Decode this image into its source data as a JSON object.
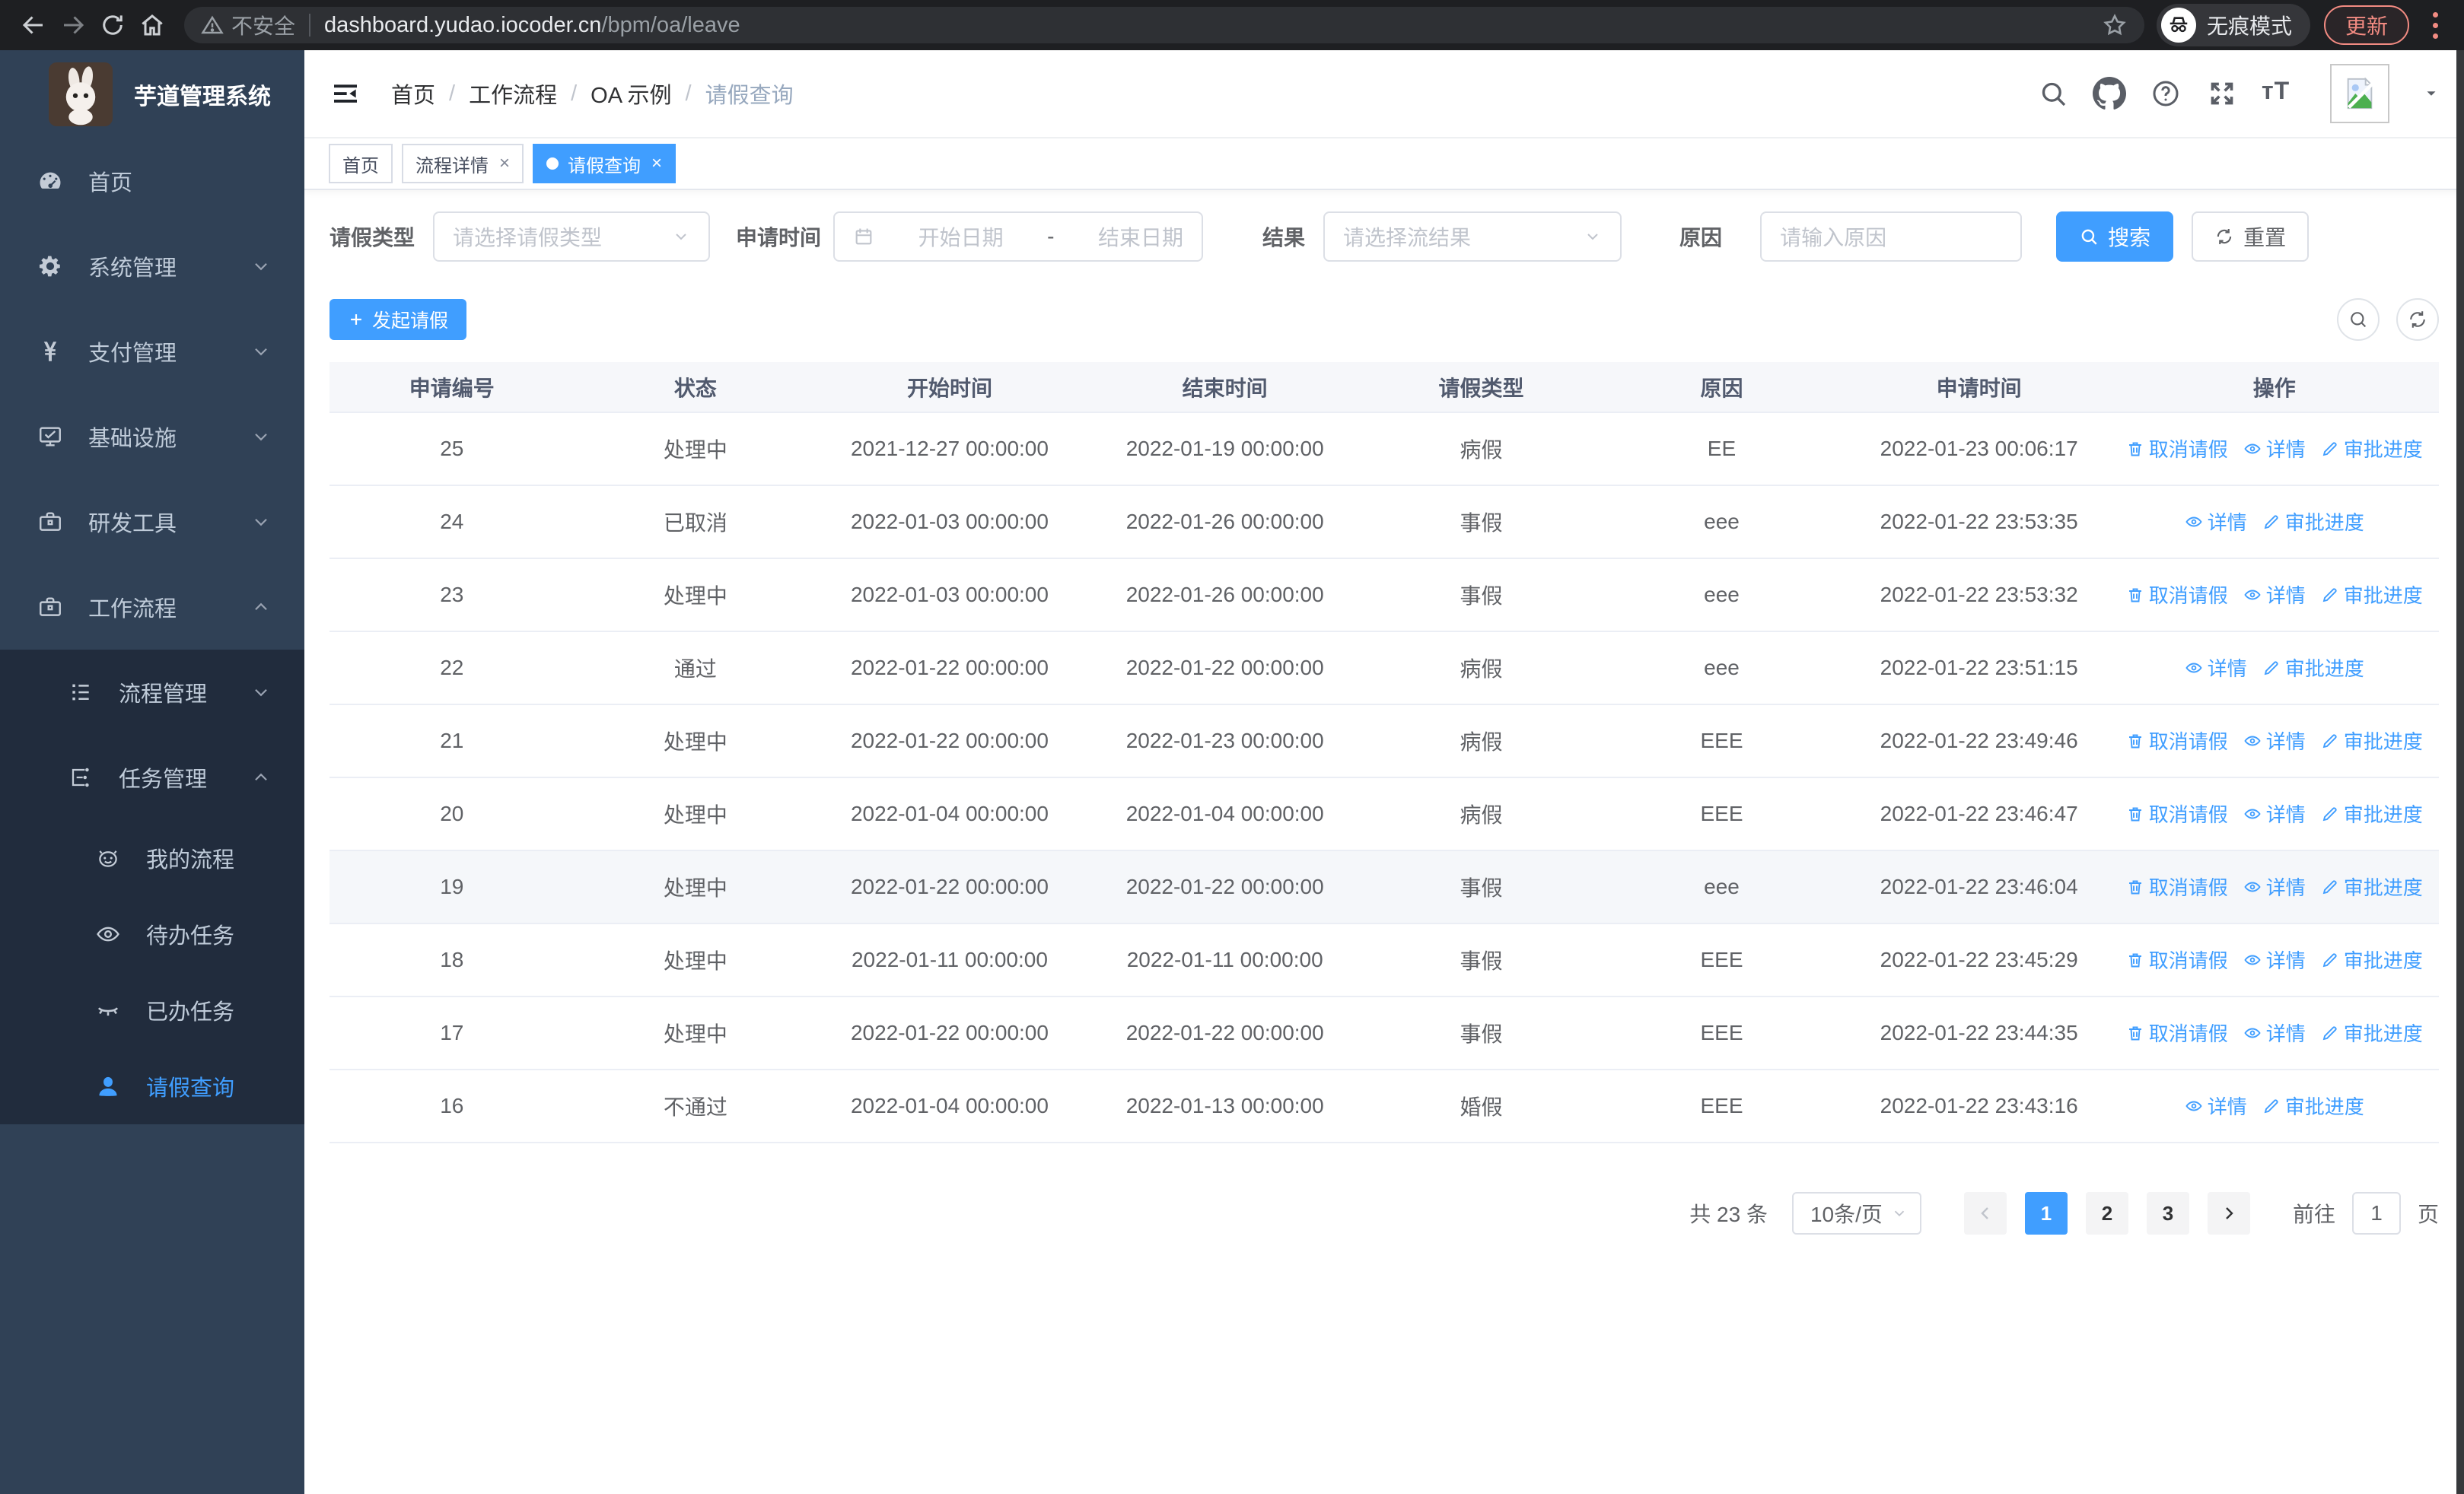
{
  "colors": {
    "accent": "#409eff",
    "sidebar_bg": "#304156",
    "sidebar_submenu_bg": "#212c3d",
    "browser_bar_bg": "#1e1f22",
    "update_accent": "#f28b82",
    "table_border": "#ebeef5"
  },
  "browser": {
    "security_label": "不安全",
    "url_host": "dashboard.yudao.iocoder.cn",
    "url_path": "/bpm/oa/leave",
    "incognito_label": "无痕模式",
    "update_label": "更新"
  },
  "sidebar": {
    "title": "芋道管理系统",
    "items": [
      {
        "label": "首页",
        "icon": "dashboard-icon",
        "level": 1,
        "chevron": null,
        "submenu": false,
        "active": false
      },
      {
        "label": "系统管理",
        "icon": "gear-icon",
        "level": 1,
        "chevron": "down",
        "submenu": false,
        "active": false
      },
      {
        "label": "支付管理",
        "icon": "yen-icon",
        "level": 1,
        "chevron": "down",
        "submenu": false,
        "active": false
      },
      {
        "label": "基础设施",
        "icon": "monitor-icon",
        "level": 1,
        "chevron": "down",
        "submenu": false,
        "active": false
      },
      {
        "label": "研发工具",
        "icon": "toolbox-icon",
        "level": 1,
        "chevron": "down",
        "submenu": false,
        "active": false
      },
      {
        "label": "工作流程",
        "icon": "briefcase-icon",
        "level": 1,
        "chevron": "up",
        "submenu": false,
        "active": false
      },
      {
        "label": "流程管理",
        "icon": "tree-list-icon",
        "level": 2,
        "chevron": "down",
        "submenu": true,
        "active": false
      },
      {
        "label": "任务管理",
        "icon": "flow-icon",
        "level": 2,
        "chevron": "up",
        "submenu": true,
        "active": false
      },
      {
        "label": "我的流程",
        "icon": "robot-face-icon",
        "level": 3,
        "chevron": null,
        "submenu": true,
        "active": false
      },
      {
        "label": "待办任务",
        "icon": "eye-open-icon",
        "level": 3,
        "chevron": null,
        "submenu": true,
        "active": false
      },
      {
        "label": "已办任务",
        "icon": "eye-closed-icon",
        "level": 3,
        "chevron": null,
        "submenu": true,
        "active": false
      },
      {
        "label": "请假查询",
        "icon": "user-icon",
        "level": 3,
        "chevron": null,
        "submenu": true,
        "active": true
      }
    ]
  },
  "breadcrumb": [
    "首页",
    "工作流程",
    "OA 示例",
    "请假查询"
  ],
  "tabs": [
    {
      "label": "首页",
      "closable": false,
      "active": false
    },
    {
      "label": "流程详情",
      "closable": true,
      "active": false
    },
    {
      "label": "请假查询",
      "closable": true,
      "active": true
    }
  ],
  "filters": {
    "leave_type": {
      "label": "请假类型",
      "placeholder": "请选择请假类型"
    },
    "apply_time": {
      "label": "申请时间",
      "start_placeholder": "开始日期",
      "separator": "-",
      "end_placeholder": "结束日期"
    },
    "result": {
      "label": "结果",
      "placeholder": "请选择流结果"
    },
    "reason": {
      "label": "原因",
      "placeholder": "请输入原因"
    },
    "search_label": "搜索",
    "reset_label": "重置"
  },
  "toolbar": {
    "create_label": "发起请假"
  },
  "table": {
    "columns": [
      "申请编号",
      "状态",
      "开始时间",
      "结束时间",
      "请假类型",
      "原因",
      "申请时间",
      "操作"
    ],
    "col_widths": [
      "11.6%",
      "11.5%",
      "12.6%",
      "13.5%",
      "10.8%",
      "12%",
      "12.4%",
      "15.6%"
    ],
    "action_labels": {
      "cancel": "取消请假",
      "detail": "详情",
      "progress": "审批进度"
    },
    "rows": [
      {
        "id": "25",
        "status": "处理中",
        "start": "2021-12-27 00:00:00",
        "end": "2022-01-19 00:00:00",
        "type": "病假",
        "reason": "EE",
        "applied": "2022-01-23 00:06:17",
        "actions": [
          "cancel",
          "detail",
          "progress"
        ],
        "highlighted": false
      },
      {
        "id": "24",
        "status": "已取消",
        "start": "2022-01-03 00:00:00",
        "end": "2022-01-26 00:00:00",
        "type": "事假",
        "reason": "eee",
        "applied": "2022-01-22 23:53:35",
        "actions": [
          "detail",
          "progress"
        ],
        "highlighted": false
      },
      {
        "id": "23",
        "status": "处理中",
        "start": "2022-01-03 00:00:00",
        "end": "2022-01-26 00:00:00",
        "type": "事假",
        "reason": "eee",
        "applied": "2022-01-22 23:53:32",
        "actions": [
          "cancel",
          "detail",
          "progress"
        ],
        "highlighted": false
      },
      {
        "id": "22",
        "status": "通过",
        "start": "2022-01-22 00:00:00",
        "end": "2022-01-22 00:00:00",
        "type": "病假",
        "reason": "eee",
        "applied": "2022-01-22 23:51:15",
        "actions": [
          "detail",
          "progress"
        ],
        "highlighted": false
      },
      {
        "id": "21",
        "status": "处理中",
        "start": "2022-01-22 00:00:00",
        "end": "2022-01-23 00:00:00",
        "type": "病假",
        "reason": "EEE",
        "applied": "2022-01-22 23:49:46",
        "actions": [
          "cancel",
          "detail",
          "progress"
        ],
        "highlighted": false
      },
      {
        "id": "20",
        "status": "处理中",
        "start": "2022-01-04 00:00:00",
        "end": "2022-01-04 00:00:00",
        "type": "病假",
        "reason": "EEE",
        "applied": "2022-01-22 23:46:47",
        "actions": [
          "cancel",
          "detail",
          "progress"
        ],
        "highlighted": false
      },
      {
        "id": "19",
        "status": "处理中",
        "start": "2022-01-22 00:00:00",
        "end": "2022-01-22 00:00:00",
        "type": "事假",
        "reason": "eee",
        "applied": "2022-01-22 23:46:04",
        "actions": [
          "cancel",
          "detail",
          "progress"
        ],
        "highlighted": true
      },
      {
        "id": "18",
        "status": "处理中",
        "start": "2022-01-11 00:00:00",
        "end": "2022-01-11 00:00:00",
        "type": "事假",
        "reason": "EEE",
        "applied": "2022-01-22 23:45:29",
        "actions": [
          "cancel",
          "detail",
          "progress"
        ],
        "highlighted": false
      },
      {
        "id": "17",
        "status": "处理中",
        "start": "2022-01-22 00:00:00",
        "end": "2022-01-22 00:00:00",
        "type": "事假",
        "reason": "EEE",
        "applied": "2022-01-22 23:44:35",
        "actions": [
          "cancel",
          "detail",
          "progress"
        ],
        "highlighted": false
      },
      {
        "id": "16",
        "status": "不通过",
        "start": "2022-01-04 00:00:00",
        "end": "2022-01-13 00:00:00",
        "type": "婚假",
        "reason": "EEE",
        "applied": "2022-01-22 23:43:16",
        "actions": [
          "detail",
          "progress"
        ],
        "highlighted": false
      }
    ]
  },
  "pagination": {
    "total": "共 23 条",
    "page_size": "10条/页",
    "pages": [
      "1",
      "2",
      "3"
    ],
    "active_page": "1",
    "goto_label": "前往",
    "goto_value": "1",
    "page_unit": "页"
  }
}
